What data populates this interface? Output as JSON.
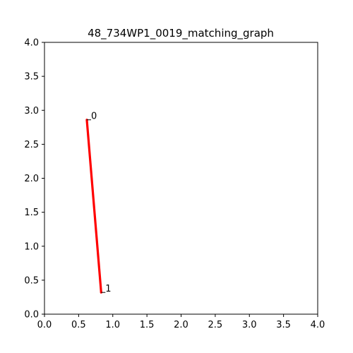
{
  "chart_data": {
    "type": "line",
    "title": "48_734WP1_0019_matching_graph",
    "xlabel": "",
    "ylabel": "",
    "xlim": [
      0,
      4
    ],
    "ylim": [
      0,
      4
    ],
    "grid": false,
    "x_ticks": [
      "0.0",
      "0.5",
      "1.0",
      "1.5",
      "2.0",
      "2.5",
      "3.0",
      "3.5",
      "4.0"
    ],
    "y_ticks": [
      "0.0",
      "0.5",
      "1.0",
      "1.5",
      "2.0",
      "2.5",
      "3.0",
      "3.5",
      "4.0"
    ],
    "points": [
      {
        "label": "0",
        "x": 0.62,
        "y": 2.86
      },
      {
        "label": "1",
        "x": 0.83,
        "y": 0.32
      }
    ],
    "edges": [
      [
        0,
        1
      ]
    ],
    "edge_color": "#ff0000"
  }
}
